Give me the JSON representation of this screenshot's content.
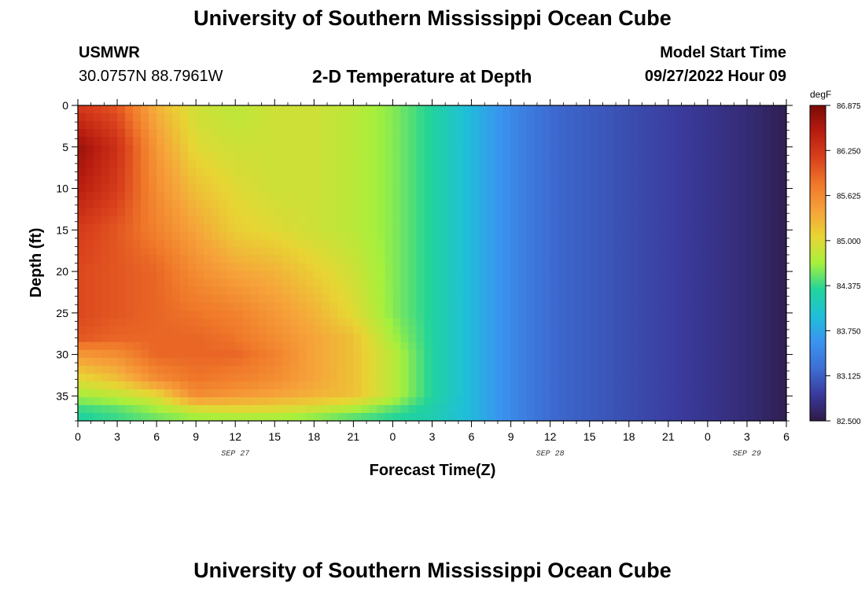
{
  "page": {
    "title": "University of Southern Mississippi Ocean Cube",
    "footer_title": "University of Southern Mississippi Ocean Cube",
    "station": "USMWR",
    "coords": "30.0757N  88.7961W",
    "subtitle": "2-D Temperature at Depth",
    "model_start_label": "Model Start Time",
    "model_start_value": "09/27/2022 Hour 09"
  },
  "chart_data": {
    "type": "heatmap",
    "title": "2-D Temperature at Depth",
    "xlabel": "Forecast Time(Z)",
    "ylabel": "Depth (ft)",
    "x_ticks": [
      "0",
      "3",
      "6",
      "9",
      "12",
      "15",
      "18",
      "21",
      "0",
      "3",
      "6",
      "9",
      "12",
      "15",
      "18",
      "21",
      "0",
      "3",
      "6"
    ],
    "x_hours": [
      0,
      3,
      6,
      9,
      12,
      15,
      18,
      21,
      24,
      27,
      30,
      33,
      36,
      39,
      42,
      45,
      48,
      51,
      54
    ],
    "xlim": [
      0,
      54
    ],
    "date_labels": [
      {
        "label": "SEP 27",
        "hour": 12
      },
      {
        "label": "SEP 28",
        "hour": 36
      },
      {
        "label": "SEP 29",
        "hour": 51
      }
    ],
    "y_ticks": [
      0,
      5,
      10,
      15,
      20,
      25,
      30,
      35
    ],
    "ylim": [
      0,
      38
    ],
    "colorbar": {
      "unit": "degF",
      "min": 82.5,
      "max": 86.875,
      "labels": [
        "86.875",
        "86.250",
        "85.625",
        "85.000",
        "84.375",
        "83.750",
        "83.125",
        "82.500"
      ],
      "colors": [
        "#2e1a47",
        "#3a3a9c",
        "#3d6fd4",
        "#3a93f0",
        "#1fbfd8",
        "#22d49a",
        "#a6f03c",
        "#e8d534",
        "#f6a23a",
        "#f0782a",
        "#d9401c",
        "#b81c10",
        "#7a0a06"
      ]
    },
    "temperature_field": {
      "depth_ft": [
        0,
        5,
        10,
        15,
        20,
        25,
        28,
        30,
        33,
        35,
        37,
        38
      ],
      "hour": [
        0,
        3,
        6,
        9,
        12,
        15,
        18,
        21,
        24,
        27,
        30,
        33,
        36,
        39,
        42,
        45,
        48,
        51,
        54
      ],
      "degF": [
        [
          86.2,
          86.0,
          85.3,
          84.9,
          84.8,
          84.9,
          84.9,
          84.8,
          84.6,
          84.3,
          83.9,
          83.5,
          83.2,
          83.1,
          83.0,
          82.9,
          82.8,
          82.7,
          82.55
        ],
        [
          86.7,
          86.3,
          85.5,
          85.0,
          84.9,
          84.9,
          84.9,
          84.8,
          84.6,
          84.3,
          83.9,
          83.5,
          83.2,
          83.1,
          83.0,
          82.9,
          82.8,
          82.7,
          82.55
        ],
        [
          86.5,
          86.2,
          85.6,
          85.2,
          85.0,
          84.9,
          84.9,
          84.8,
          84.6,
          84.3,
          83.9,
          83.5,
          83.2,
          83.1,
          83.0,
          82.9,
          82.8,
          82.7,
          82.55
        ],
        [
          86.2,
          86.0,
          85.7,
          85.4,
          85.1,
          85.0,
          84.9,
          84.8,
          84.6,
          84.3,
          83.9,
          83.5,
          83.2,
          83.1,
          83.0,
          82.9,
          82.8,
          82.7,
          82.55
        ],
        [
          86.1,
          86.0,
          85.9,
          85.6,
          85.4,
          85.3,
          85.1,
          84.9,
          84.6,
          84.3,
          83.9,
          83.5,
          83.2,
          83.1,
          83.0,
          82.9,
          82.8,
          82.7,
          82.55
        ],
        [
          86.1,
          86.0,
          85.9,
          85.8,
          85.7,
          85.5,
          85.3,
          85.0,
          84.6,
          84.3,
          83.9,
          83.5,
          83.2,
          83.1,
          83.0,
          82.9,
          82.8,
          82.7,
          82.55
        ],
        [
          86.0,
          85.9,
          85.9,
          85.9,
          85.8,
          85.6,
          85.4,
          85.2,
          84.7,
          84.3,
          83.9,
          83.5,
          83.2,
          83.1,
          83.0,
          82.9,
          82.8,
          82.7,
          82.55
        ],
        [
          85.5,
          85.6,
          85.9,
          85.9,
          85.9,
          85.7,
          85.4,
          85.2,
          84.8,
          84.3,
          83.9,
          83.5,
          83.2,
          83.1,
          83.0,
          82.9,
          82.8,
          82.7,
          82.55
        ],
        [
          85.0,
          85.2,
          85.6,
          85.8,
          85.7,
          85.6,
          85.4,
          85.2,
          84.8,
          84.3,
          83.9,
          83.5,
          83.2,
          83.1,
          83.0,
          82.9,
          82.8,
          82.7,
          82.55
        ],
        [
          84.7,
          84.8,
          85.0,
          85.6,
          85.5,
          85.4,
          85.3,
          85.2,
          84.8,
          84.3,
          83.9,
          83.5,
          83.2,
          83.1,
          83.0,
          82.9,
          82.8,
          82.7,
          82.55
        ],
        [
          84.3,
          84.4,
          84.6,
          84.8,
          84.9,
          84.9,
          84.8,
          84.6,
          84.4,
          84.2,
          83.9,
          83.5,
          83.2,
          83.1,
          83.0,
          82.9,
          82.8,
          82.7,
          82.55
        ],
        [
          84.3,
          84.4,
          84.5,
          84.6,
          84.6,
          84.6,
          84.5,
          84.4,
          84.3,
          84.2,
          83.9,
          83.5,
          83.2,
          83.1,
          83.0,
          82.9,
          82.8,
          82.7,
          82.55
        ]
      ]
    },
    "grid": false,
    "legend": "right"
  }
}
